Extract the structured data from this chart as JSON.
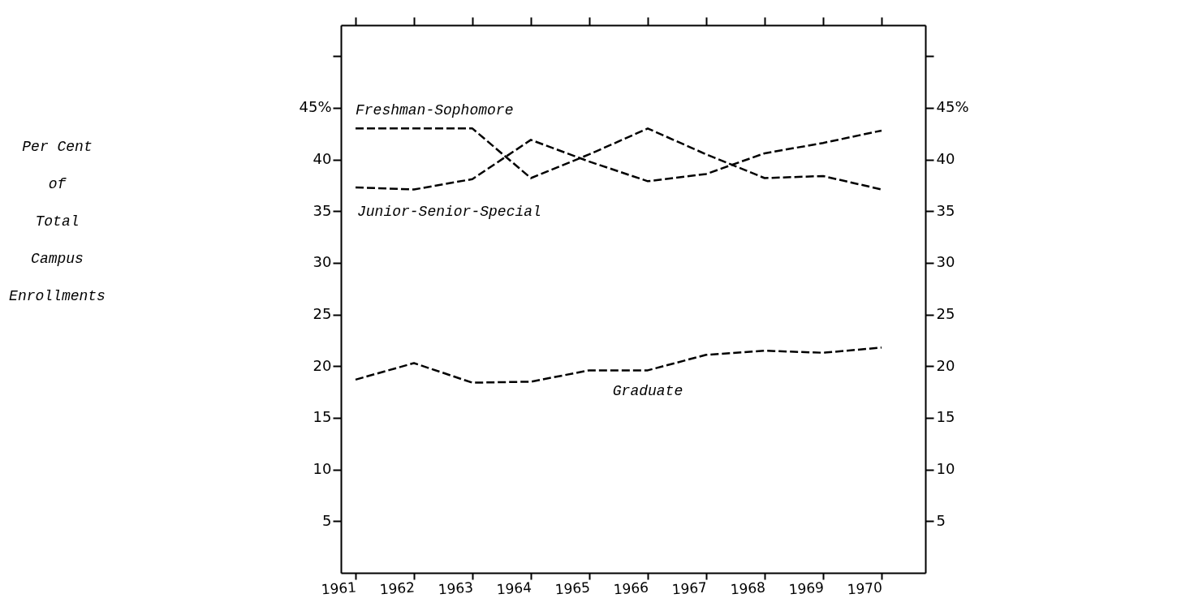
{
  "chart_data": {
    "type": "line",
    "ylabel": "Per Cent\nof\nTotal\nCampus\nEnrollments",
    "categories": [
      "1961",
      "1962",
      "1963",
      "1964",
      "1965",
      "1966",
      "1967",
      "1968",
      "1969",
      "1970"
    ],
    "series": [
      {
        "name": "Freshman-Sophomore",
        "color": "#000000",
        "line_style": "dashed",
        "values": [
          43,
          43,
          43,
          38.2,
          40.5,
          43,
          40.5,
          38.2,
          38.4,
          37.1
        ]
      },
      {
        "name": "Junior-Senior-Special",
        "color": "#000000",
        "line_style": "dashed",
        "values": [
          37.3,
          37.1,
          38.1,
          41.9,
          39.8,
          37.9,
          38.6,
          40.6,
          41.6,
          42.8
        ]
      },
      {
        "name": "Graduate",
        "color": "#000000",
        "line_style": "dashed",
        "values": [
          18.7,
          20.3,
          18.4,
          18.5,
          19.6,
          19.6,
          21.1,
          21.5,
          21.3,
          21.8
        ]
      }
    ],
    "ylim": [
      0,
      53
    ],
    "yticks": [
      5,
      10,
      15,
      20,
      25,
      30,
      35,
      40,
      {
        "value": 45,
        "label": "45%"
      },
      {
        "value": 50,
        "label": null
      }
    ],
    "y2lim": [
      0,
      53
    ],
    "y2ticks": [
      5,
      10,
      15,
      20,
      25,
      30,
      35,
      40,
      {
        "value": 45,
        "label": "45%"
      },
      {
        "value": 50,
        "label": null
      }
    ],
    "grid": false,
    "marker": "none"
  }
}
